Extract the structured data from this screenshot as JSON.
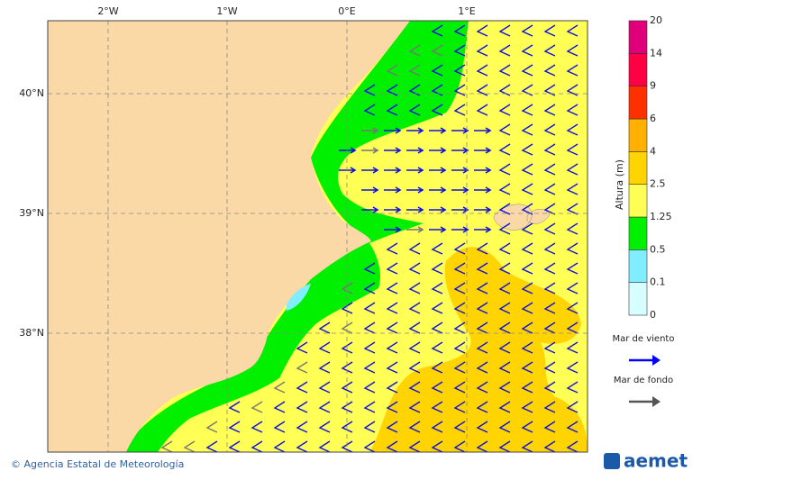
{
  "map": {
    "x_labels": [
      "2°W",
      "1°W",
      "0°E",
      "1°E"
    ],
    "y_labels": [
      "40°N",
      "39°N",
      "38°N"
    ],
    "colorbar": {
      "label": "Altura (m)",
      "levels": [
        0,
        0.1,
        0.5,
        1.25,
        2.5,
        4,
        6,
        9,
        14,
        20
      ],
      "colors": [
        "#d8ffff",
        "#80eeff",
        "#00f000",
        "#ffff55",
        "#ffd400",
        "#ffb000",
        "#ff3000",
        "#ff0044",
        "#e0007a",
        "#b000b0"
      ]
    },
    "legend": [
      {
        "label": "Mar de viento",
        "color": "#0000ff"
      },
      {
        "label": "Mar de fondo",
        "color": "#555555"
      }
    ],
    "footer": "© Agencia Estatal de Meteorología",
    "logo": "aemet"
  }
}
